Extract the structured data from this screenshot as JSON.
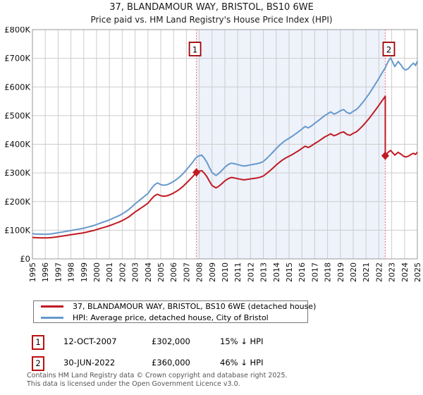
{
  "chart_data": {
    "type": "line",
    "title": "37, BLANDAMOUR WAY, BRISTOL, BS10 6WE",
    "subtitle": "Price paid vs. HM Land Registry's House Price Index (HPI)",
    "x_range": [
      1995,
      2025
    ],
    "y_range": [
      0,
      800000
    ],
    "grid": true,
    "legend_position": "bottom",
    "x_ticks": [
      1995,
      1996,
      1997,
      1998,
      1999,
      2000,
      2001,
      2002,
      2003,
      2004,
      2005,
      2006,
      2007,
      2008,
      2009,
      2010,
      2011,
      2012,
      2013,
      2014,
      2015,
      2016,
      2017,
      2018,
      2019,
      2020,
      2021,
      2022,
      2023,
      2024,
      2025
    ],
    "y_ticks": [
      0,
      100000,
      200000,
      300000,
      400000,
      500000,
      600000,
      700000,
      800000
    ],
    "y_tick_labels": [
      "£0",
      "£100K",
      "£200K",
      "£300K",
      "£400K",
      "£500K",
      "£600K",
      "£700K",
      "£800K"
    ],
    "shaded_region": {
      "from": 2007.78,
      "to": 2022.5,
      "color": "#edf2fb"
    },
    "colors": {
      "price_paid": "#c11a22",
      "hpi": "#6699cc",
      "sale_dash": "#f08080",
      "grid": "#cccccc",
      "border": "#999999",
      "marker_box_border": "#a00000"
    },
    "sales": [
      {
        "n": "1",
        "x": 2007.78,
        "price": 302000,
        "date": "12-OCT-2007",
        "price_label": "£302,000",
        "hpi_diff": "15% ↓ HPI"
      },
      {
        "n": "2",
        "x": 2022.5,
        "price": 360000,
        "date": "30-JUN-2022",
        "price_label": "£360,000",
        "hpi_diff": "46% ↓ HPI"
      }
    ],
    "property_hpi_ratio_before_sale2": 0.8507,
    "property_hpi_ratio_after_sale2": 0.5397,
    "series": [
      {
        "name": "37, BLANDAMOUR WAY, BRISTOL, BS10 6WE (detached house)",
        "role": "price-paid",
        "color": "#c11a22",
        "derived": "hpi scaled through sale prices; vertical drop at sale 2"
      },
      {
        "name": "HPI: Average price, detached house, City of Bristol",
        "role": "hpi",
        "color": "#6699cc",
        "points": [
          [
            1995.0,
            88000
          ],
          [
            1995.25,
            87000
          ],
          [
            1995.5,
            86500
          ],
          [
            1995.75,
            86000
          ],
          [
            1996.0,
            86000
          ],
          [
            1996.25,
            86500
          ],
          [
            1996.5,
            87500
          ],
          [
            1996.75,
            89000
          ],
          [
            1997.0,
            91000
          ],
          [
            1997.25,
            93000
          ],
          [
            1997.5,
            95000
          ],
          [
            1997.75,
            97000
          ],
          [
            1998.0,
            99000
          ],
          [
            1998.25,
            101000
          ],
          [
            1998.5,
            103000
          ],
          [
            1998.75,
            105000
          ],
          [
            1999.0,
            107000
          ],
          [
            1999.25,
            110000
          ],
          [
            1999.5,
            113000
          ],
          [
            1999.75,
            116000
          ],
          [
            2000.0,
            120000
          ],
          [
            2000.25,
            124000
          ],
          [
            2000.5,
            128000
          ],
          [
            2000.75,
            132000
          ],
          [
            2001.0,
            136000
          ],
          [
            2001.25,
            141000
          ],
          [
            2001.5,
            146000
          ],
          [
            2001.75,
            151000
          ],
          [
            2002.0,
            157000
          ],
          [
            2002.25,
            164000
          ],
          [
            2002.5,
            172000
          ],
          [
            2002.75,
            182000
          ],
          [
            2003.0,
            192000
          ],
          [
            2003.25,
            201000
          ],
          [
            2003.5,
            210000
          ],
          [
            2003.75,
            219000
          ],
          [
            2004.0,
            228000
          ],
          [
            2004.25,
            244000
          ],
          [
            2004.5,
            258000
          ],
          [
            2004.75,
            265000
          ],
          [
            2005.0,
            259000
          ],
          [
            2005.25,
            257000
          ],
          [
            2005.5,
            259000
          ],
          [
            2005.75,
            264000
          ],
          [
            2006.0,
            270000
          ],
          [
            2006.25,
            278000
          ],
          [
            2006.5,
            287000
          ],
          [
            2006.75,
            298000
          ],
          [
            2007.0,
            311000
          ],
          [
            2007.25,
            324000
          ],
          [
            2007.5,
            338000
          ],
          [
            2007.78,
            355000
          ],
          [
            2008.0,
            360000
          ],
          [
            2008.2,
            362000
          ],
          [
            2008.4,
            351000
          ],
          [
            2008.6,
            337000
          ],
          [
            2008.8,
            318000
          ],
          [
            2009.0,
            301000
          ],
          [
            2009.3,
            291000
          ],
          [
            2009.5,
            297000
          ],
          [
            2009.75,
            308000
          ],
          [
            2010.0,
            320000
          ],
          [
            2010.25,
            329000
          ],
          [
            2010.5,
            334000
          ],
          [
            2010.75,
            332000
          ],
          [
            2011.0,
            329000
          ],
          [
            2011.25,
            326000
          ],
          [
            2011.5,
            324000
          ],
          [
            2011.75,
            326000
          ],
          [
            2012.0,
            328000
          ],
          [
            2012.25,
            330000
          ],
          [
            2012.5,
            332000
          ],
          [
            2012.75,
            335000
          ],
          [
            2013.0,
            340000
          ],
          [
            2013.25,
            350000
          ],
          [
            2013.5,
            361000
          ],
          [
            2013.75,
            373000
          ],
          [
            2014.0,
            385000
          ],
          [
            2014.25,
            396000
          ],
          [
            2014.5,
            406000
          ],
          [
            2014.75,
            414000
          ],
          [
            2015.0,
            421000
          ],
          [
            2015.25,
            428000
          ],
          [
            2015.5,
            436000
          ],
          [
            2015.75,
            444000
          ],
          [
            2016.0,
            453000
          ],
          [
            2016.25,
            462000
          ],
          [
            2016.5,
            457000
          ],
          [
            2016.75,
            464000
          ],
          [
            2017.0,
            473000
          ],
          [
            2017.25,
            481000
          ],
          [
            2017.5,
            490000
          ],
          [
            2017.75,
            499000
          ],
          [
            2018.0,
            506000
          ],
          [
            2018.25,
            513000
          ],
          [
            2018.5,
            505000
          ],
          [
            2018.75,
            510000
          ],
          [
            2019.0,
            517000
          ],
          [
            2019.25,
            521000
          ],
          [
            2019.5,
            511000
          ],
          [
            2019.75,
            507000
          ],
          [
            2020.0,
            515000
          ],
          [
            2020.25,
            521000
          ],
          [
            2020.5,
            533000
          ],
          [
            2020.75,
            546000
          ],
          [
            2021.0,
            561000
          ],
          [
            2021.25,
            577000
          ],
          [
            2021.5,
            594000
          ],
          [
            2021.75,
            612000
          ],
          [
            2022.0,
            630000
          ],
          [
            2022.25,
            649000
          ],
          [
            2022.5,
            667000
          ],
          [
            2022.75,
            691000
          ],
          [
            2022.92,
            701000
          ],
          [
            2023.1,
            684000
          ],
          [
            2023.25,
            671000
          ],
          [
            2023.5,
            689000
          ],
          [
            2023.75,
            675000
          ],
          [
            2023.92,
            664000
          ],
          [
            2024.1,
            659000
          ],
          [
            2024.3,
            664000
          ],
          [
            2024.5,
            675000
          ],
          [
            2024.7,
            683000
          ],
          [
            2024.85,
            675000
          ],
          [
            2025.0,
            690000
          ]
        ]
      }
    ]
  },
  "footer": {
    "line1": "Contains HM Land Registry data © Crown copyright and database right 2025.",
    "line2": "This data is licensed under the Open Government Licence v3.0."
  }
}
